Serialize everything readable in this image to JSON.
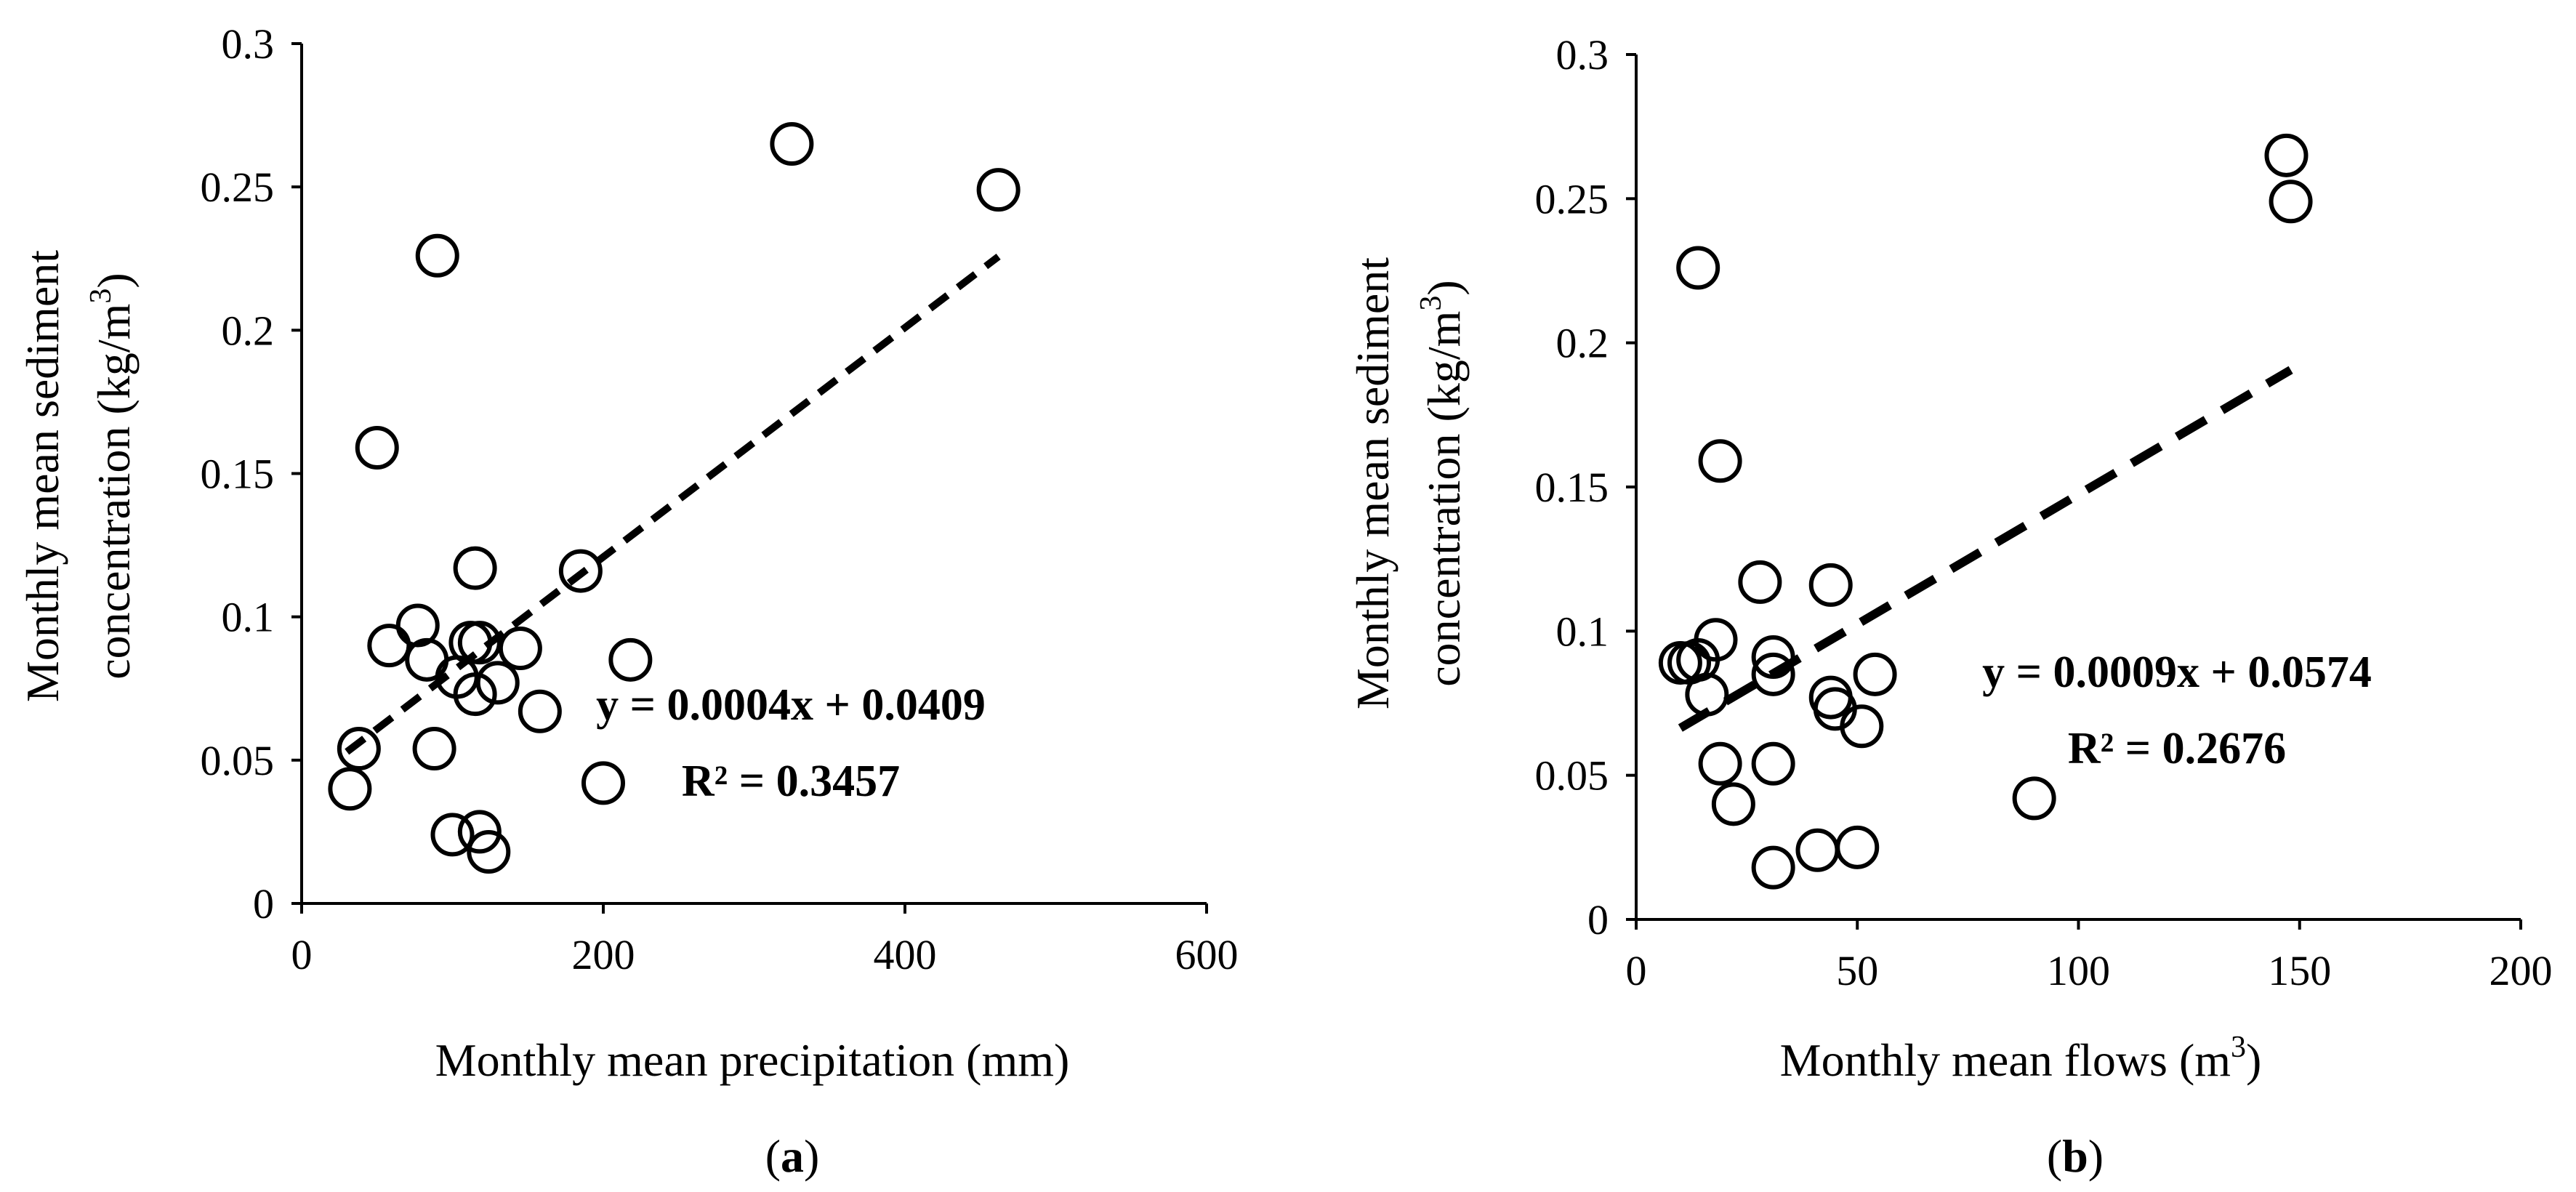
{
  "chart_data": [
    {
      "type": "scatter",
      "panel_label": "a",
      "xlabel": "Monthly mean precipitation (mm)",
      "ylabel_line1": "Monthly mean  sediment",
      "ylabel_line2_pre": "concentration (kg/m",
      "ylabel_line2_sup": "3",
      "ylabel_line2_post": ")",
      "xlim": [
        0,
        600
      ],
      "ylim": [
        0,
        0.3
      ],
      "xticks": [
        0,
        200,
        400,
        600
      ],
      "xtick_labels": [
        "0",
        "200",
        "400",
        "600"
      ],
      "yticks": [
        0,
        0.05,
        0.1,
        0.15,
        0.2,
        0.25,
        0.3
      ],
      "ytick_labels": [
        "0",
        "0.05",
        "0.1",
        "0.15",
        "0.2",
        "0.25",
        "0.3"
      ],
      "points": [
        {
          "x": 325,
          "y": 0.265
        },
        {
          "x": 462,
          "y": 0.249
        },
        {
          "x": 90,
          "y": 0.226
        },
        {
          "x": 50,
          "y": 0.159
        },
        {
          "x": 115,
          "y": 0.117
        },
        {
          "x": 185,
          "y": 0.116
        },
        {
          "x": 77,
          "y": 0.097
        },
        {
          "x": 112,
          "y": 0.091
        },
        {
          "x": 118,
          "y": 0.091
        },
        {
          "x": 58,
          "y": 0.09
        },
        {
          "x": 145,
          "y": 0.089
        },
        {
          "x": 83,
          "y": 0.085
        },
        {
          "x": 218,
          "y": 0.085
        },
        {
          "x": 103,
          "y": 0.079
        },
        {
          "x": 130,
          "y": 0.077
        },
        {
          "x": 115,
          "y": 0.073
        },
        {
          "x": 158,
          "y": 0.067
        },
        {
          "x": 38,
          "y": 0.054
        },
        {
          "x": 88,
          "y": 0.054
        },
        {
          "x": 200,
          "y": 0.042
        },
        {
          "x": 32,
          "y": 0.04
        },
        {
          "x": 100,
          "y": 0.024
        },
        {
          "x": 118,
          "y": 0.025
        },
        {
          "x": 124,
          "y": 0.018
        }
      ],
      "trendline": {
        "slope": 0.0004,
        "intercept": 0.0409,
        "x_range": [
          30,
          462
        ]
      },
      "equation": "y = 0.0004x + 0.0409",
      "r2_label": "R² = 0.3457"
    },
    {
      "type": "scatter",
      "panel_label": "b",
      "xlabel_pre": "Monthly mean  flows (m",
      "xlabel_sup": "3",
      "xlabel_post": ")",
      "ylabel_line1": "Monthly mean  sediment",
      "ylabel_line2_pre": "concentration (kg/m",
      "ylabel_line2_sup": "3",
      "ylabel_line2_post": ")",
      "xlim": [
        0,
        200
      ],
      "ylim": [
        0,
        0.3
      ],
      "xticks": [
        0,
        50,
        100,
        150,
        200
      ],
      "xtick_labels": [
        "0",
        "50",
        "100",
        "150",
        "200"
      ],
      "yticks": [
        0,
        0.05,
        0.1,
        0.15,
        0.2,
        0.25,
        0.3
      ],
      "ytick_labels": [
        "0",
        "0.05",
        "0.1",
        "0.15",
        "0.2",
        "0.25",
        "0.3"
      ],
      "points": [
        {
          "x": 147,
          "y": 0.265
        },
        {
          "x": 148,
          "y": 0.249
        },
        {
          "x": 14,
          "y": 0.226
        },
        {
          "x": 19,
          "y": 0.159
        },
        {
          "x": 28,
          "y": 0.117
        },
        {
          "x": 44,
          "y": 0.116
        },
        {
          "x": 18,
          "y": 0.097
        },
        {
          "x": 31,
          "y": 0.091
        },
        {
          "x": 10,
          "y": 0.089
        },
        {
          "x": 12,
          "y": 0.089
        },
        {
          "x": 14,
          "y": 0.09
        },
        {
          "x": 31,
          "y": 0.085
        },
        {
          "x": 54,
          "y": 0.085
        },
        {
          "x": 16,
          "y": 0.078
        },
        {
          "x": 44,
          "y": 0.077
        },
        {
          "x": 45,
          "y": 0.073
        },
        {
          "x": 51,
          "y": 0.067
        },
        {
          "x": 19,
          "y": 0.054
        },
        {
          "x": 31,
          "y": 0.054
        },
        {
          "x": 90,
          "y": 0.042
        },
        {
          "x": 22,
          "y": 0.04
        },
        {
          "x": 41,
          "y": 0.024
        },
        {
          "x": 50,
          "y": 0.025
        },
        {
          "x": 31,
          "y": 0.018
        }
      ],
      "trendline": {
        "slope": 0.0009,
        "intercept": 0.0574,
        "x_range": [
          10,
          148
        ]
      },
      "equation": "y = 0.0009x + 0.0574",
      "r2_label": "R² = 0.2676"
    }
  ]
}
